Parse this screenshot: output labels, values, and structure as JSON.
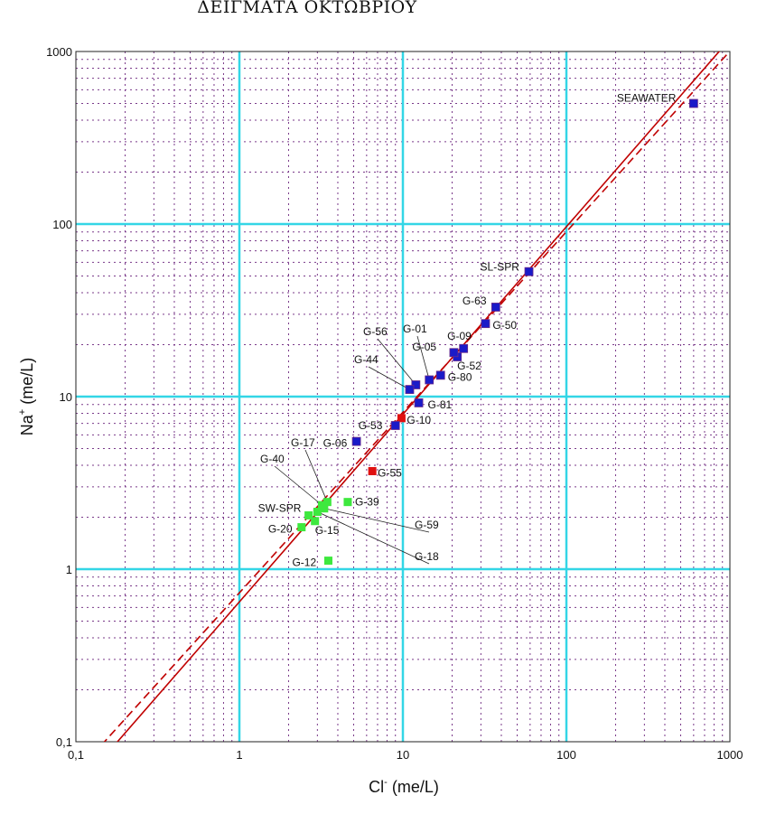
{
  "chart_data": {
    "type": "scatter",
    "title": "ΔΕΙΓΜΑΤΑ ΟΚΤΩΒΡΙΟΥ",
    "xlabel": {
      "base": "Cl",
      "sup": "-",
      "unit": " (me/L)"
    },
    "ylabel": {
      "base": "Na",
      "sup": "+",
      "unit": " (me/L)"
    },
    "x_scale": "log",
    "y_scale": "log",
    "xlim": [
      0.1,
      1000
    ],
    "ylim": [
      0.1,
      1000
    ],
    "x_tick_labels": [
      "0,1",
      "1",
      "10",
      "100",
      "1000"
    ],
    "y_tick_labels": [
      "0,1",
      "1",
      "10",
      "100",
      "1000"
    ],
    "grid": true,
    "colors": {
      "major_grid": "#33d6e6",
      "minor_grid": "#7a3a8a",
      "reference_lines": "#c00000",
      "blue": "#1a1ac8",
      "red": "#e01010",
      "green": "#3ee83e"
    },
    "reference_lines": [
      {
        "style": "solid",
        "x": [
          0.1,
          1000
        ],
        "y": [
          0.0529,
          1179
        ]
      },
      {
        "style": "dashed",
        "x": [
          0.1,
          1000
        ],
        "y": [
          0.0656,
          1004
        ]
      }
    ],
    "points": [
      {
        "label": "SEAWATER",
        "x": 600,
        "y": 500,
        "color": "blue"
      },
      {
        "label": "SL-SPR",
        "x": 59,
        "y": 53,
        "color": "blue"
      },
      {
        "label": "G-63",
        "x": 37,
        "y": 33,
        "color": "blue"
      },
      {
        "label": "G-50",
        "x": 32,
        "y": 26.5,
        "color": "blue"
      },
      {
        "label": "G-09",
        "x": 23.5,
        "y": 19,
        "color": "blue"
      },
      {
        "label": "G-52",
        "x": 21.5,
        "y": 17,
        "color": "blue"
      },
      {
        "label": "G-05",
        "x": 20.5,
        "y": 18,
        "color": "blue"
      },
      {
        "label": "G-80",
        "x": 17,
        "y": 13.3,
        "color": "blue"
      },
      {
        "label": "G-01",
        "x": 14.5,
        "y": 12.5,
        "color": "blue"
      },
      {
        "label": "G-56",
        "x": 12,
        "y": 11.7,
        "color": "blue"
      },
      {
        "label": "G-44",
        "x": 11,
        "y": 11,
        "color": "blue"
      },
      {
        "label": "G-81",
        "x": 12.5,
        "y": 9.2,
        "color": "blue"
      },
      {
        "label": "G-10",
        "x": 9.8,
        "y": 7.5,
        "color": "red"
      },
      {
        "label": "G-53",
        "x": 9.0,
        "y": 6.8,
        "color": "blue"
      },
      {
        "label": "G-06",
        "x": 5.2,
        "y": 5.5,
        "color": "blue"
      },
      {
        "label": "G-55",
        "x": 6.5,
        "y": 3.7,
        "color": "red"
      },
      {
        "label": "G-39",
        "x": 4.6,
        "y": 2.45,
        "color": "green"
      },
      {
        "label": "G-17",
        "x": 3.45,
        "y": 2.45,
        "color": "green"
      },
      {
        "label": "G-40",
        "x": 3.2,
        "y": 2.35,
        "color": "green"
      },
      {
        "label": "G-59",
        "x": 3.3,
        "y": 2.25,
        "color": "green"
      },
      {
        "label": "G-18",
        "x": 3.0,
        "y": 2.15,
        "color": "green"
      },
      {
        "label": "SW-SPR",
        "x": 2.65,
        "y": 2.05,
        "color": "green"
      },
      {
        "label": "G-15",
        "x": 2.9,
        "y": 1.9,
        "color": "green"
      },
      {
        "label": "G-20",
        "x": 2.4,
        "y": 1.75,
        "color": "green"
      },
      {
        "label": "G-12",
        "x": 3.5,
        "y": 1.12,
        "color": "green"
      }
    ]
  }
}
